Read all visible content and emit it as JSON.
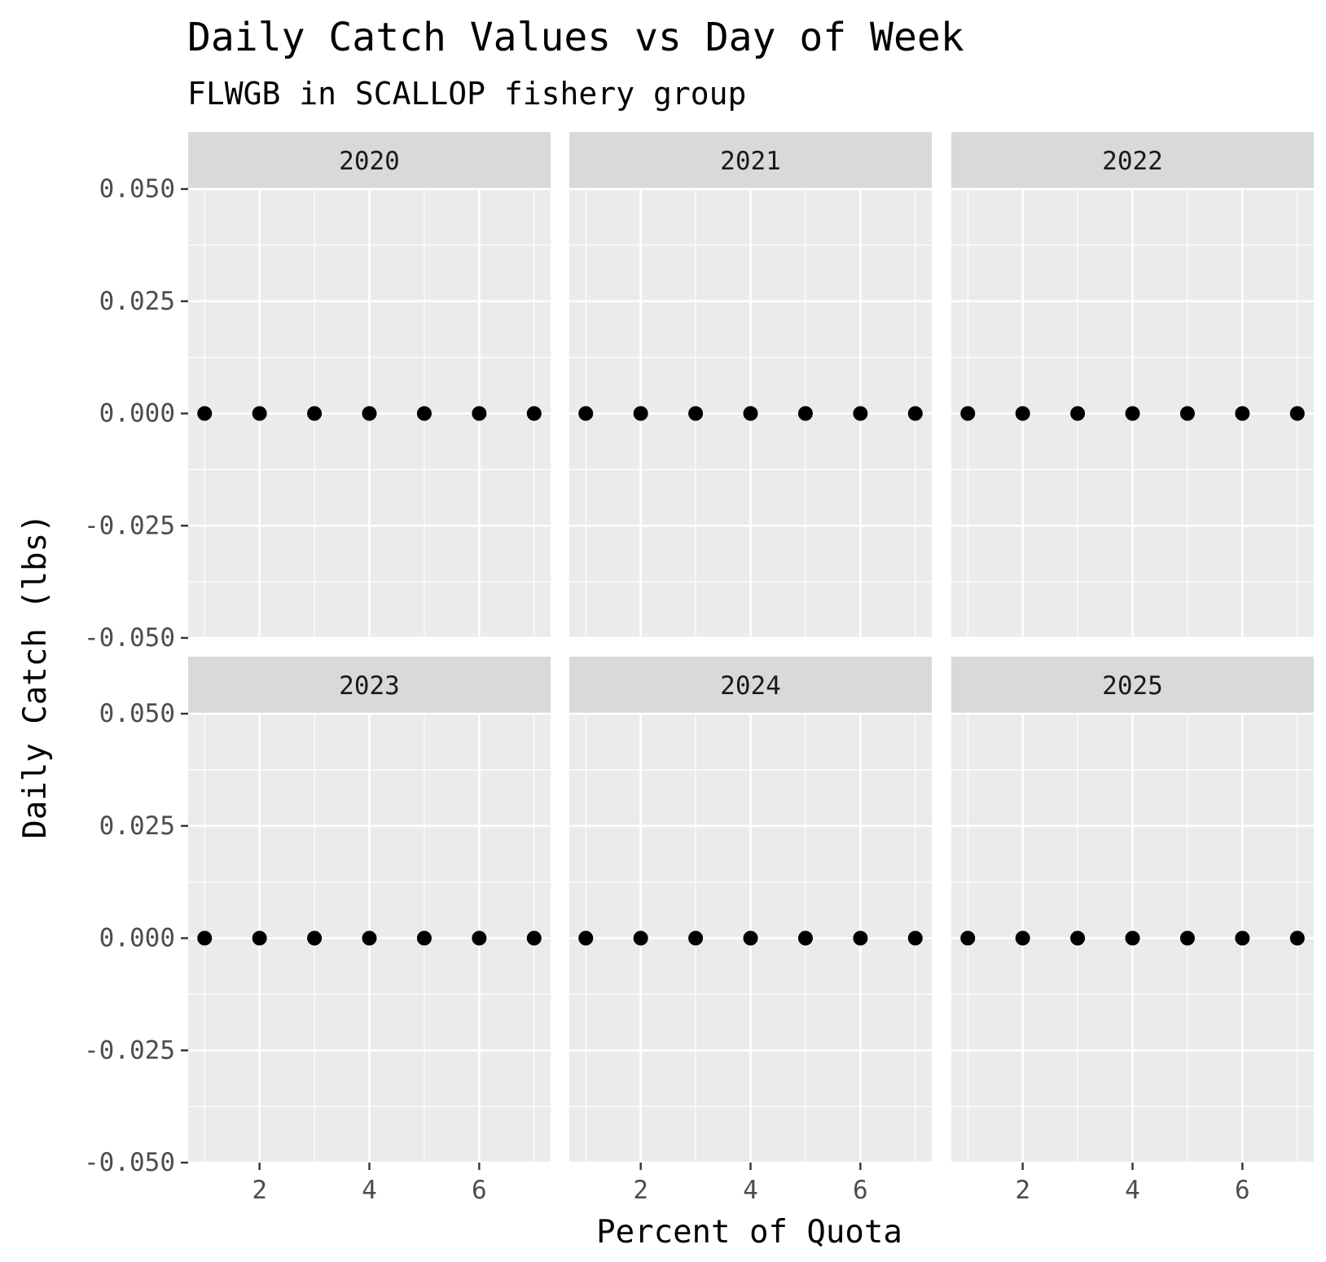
{
  "chart_data": {
    "type": "scatter",
    "title": "Daily Catch Values vs Day of Week",
    "subtitle": "FLWGB in SCALLOP fishery group",
    "xlabel": "Percent of Quota",
    "ylabel": "Daily Catch (lbs)",
    "xlim": [
      0.7,
      7.3
    ],
    "ylim": [
      -0.05,
      0.05
    ],
    "x_ticks": [
      2,
      4,
      6
    ],
    "y_ticks": [
      -0.05,
      -0.025,
      0,
      0.025,
      0.05
    ],
    "y_tick_labels": [
      "-0.050",
      "-0.025",
      "0.000",
      "0.025",
      "0.050"
    ],
    "grid": true,
    "facets": [
      {
        "label": "2020",
        "points": [
          {
            "x": 1,
            "y": 0
          },
          {
            "x": 2,
            "y": 0
          },
          {
            "x": 3,
            "y": 0
          },
          {
            "x": 4,
            "y": 0
          },
          {
            "x": 5,
            "y": 0
          },
          {
            "x": 6,
            "y": 0
          },
          {
            "x": 7,
            "y": 0
          }
        ]
      },
      {
        "label": "2021",
        "points": [
          {
            "x": 1,
            "y": 0
          },
          {
            "x": 2,
            "y": 0
          },
          {
            "x": 3,
            "y": 0
          },
          {
            "x": 4,
            "y": 0
          },
          {
            "x": 5,
            "y": 0
          },
          {
            "x": 6,
            "y": 0
          },
          {
            "x": 7,
            "y": 0
          }
        ]
      },
      {
        "label": "2022",
        "points": [
          {
            "x": 1,
            "y": 0
          },
          {
            "x": 2,
            "y": 0
          },
          {
            "x": 3,
            "y": 0
          },
          {
            "x": 4,
            "y": 0
          },
          {
            "x": 5,
            "y": 0
          },
          {
            "x": 6,
            "y": 0
          },
          {
            "x": 7,
            "y": 0
          }
        ]
      },
      {
        "label": "2023",
        "points": [
          {
            "x": 1,
            "y": 0
          },
          {
            "x": 2,
            "y": 0
          },
          {
            "x": 3,
            "y": 0
          },
          {
            "x": 4,
            "y": 0
          },
          {
            "x": 5,
            "y": 0
          },
          {
            "x": 6,
            "y": 0
          },
          {
            "x": 7,
            "y": 0
          }
        ]
      },
      {
        "label": "2024",
        "points": [
          {
            "x": 1,
            "y": 0
          },
          {
            "x": 2,
            "y": 0
          },
          {
            "x": 3,
            "y": 0
          },
          {
            "x": 4,
            "y": 0
          },
          {
            "x": 5,
            "y": 0
          },
          {
            "x": 6,
            "y": 0
          },
          {
            "x": 7,
            "y": 0
          }
        ]
      },
      {
        "label": "2025",
        "points": [
          {
            "x": 1,
            "y": 0
          },
          {
            "x": 2,
            "y": 0
          },
          {
            "x": 3,
            "y": 0
          },
          {
            "x": 4,
            "y": 0
          },
          {
            "x": 5,
            "y": 0
          },
          {
            "x": 6,
            "y": 0
          },
          {
            "x": 7,
            "y": 0
          }
        ]
      }
    ],
    "colors": {
      "panel_bg": "#ebebeb",
      "strip_bg": "#d9d9d9",
      "grid": "#ffffff",
      "point": "#000000",
      "tick_text": "#4d4d4d",
      "text": "#000000"
    }
  }
}
